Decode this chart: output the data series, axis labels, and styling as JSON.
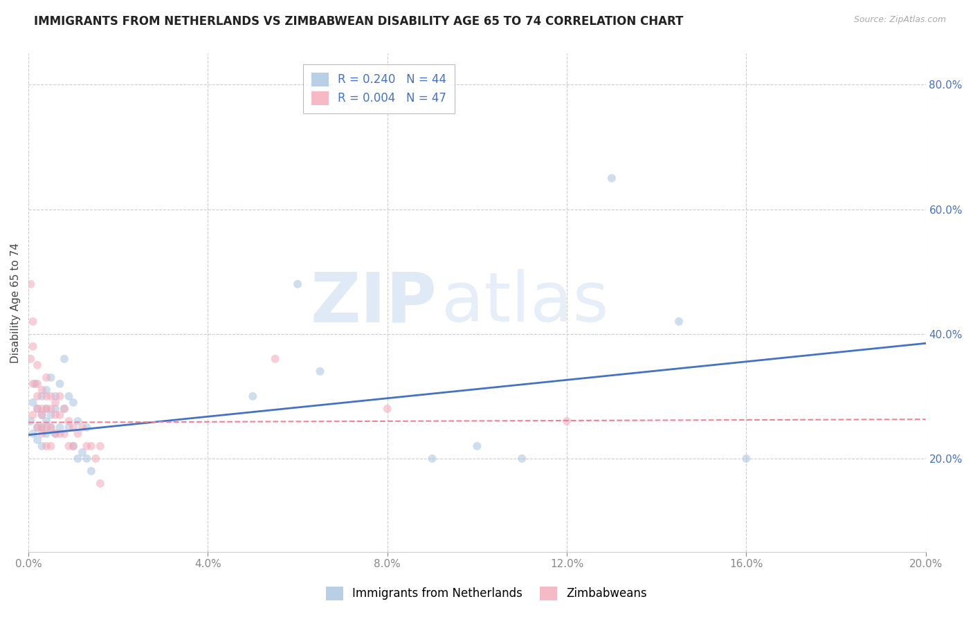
{
  "title": "IMMIGRANTS FROM NETHERLANDS VS ZIMBABWEAN DISABILITY AGE 65 TO 74 CORRELATION CHART",
  "source": "Source: ZipAtlas.com",
  "ylabel": "Disability Age 65 to 74",
  "legend_labels": [
    "Immigrants from Netherlands",
    "Zimbabweans"
  ],
  "r_values": [
    0.24,
    0.004
  ],
  "n_values": [
    44,
    47
  ],
  "blue_color": "#a8c4e0",
  "pink_color": "#f4a8b8",
  "blue_line_color": "#4472c4",
  "pink_line_color": "#f48098",
  "watermark_zip": "ZIP",
  "watermark_atlas": "atlas",
  "xlim": [
    0.0,
    0.2
  ],
  "ylim": [
    0.05,
    0.85
  ],
  "yticks_right": [
    0.2,
    0.4,
    0.6,
    0.8
  ],
  "yticks_grid": [
    0.2,
    0.4,
    0.6,
    0.8
  ],
  "xticks": [
    0.0,
    0.04,
    0.08,
    0.12,
    0.16,
    0.2
  ],
  "blue_scatter_x": [
    0.0005,
    0.001,
    0.001,
    0.0015,
    0.002,
    0.002,
    0.002,
    0.003,
    0.003,
    0.003,
    0.003,
    0.004,
    0.004,
    0.004,
    0.004,
    0.005,
    0.005,
    0.005,
    0.006,
    0.006,
    0.006,
    0.007,
    0.007,
    0.008,
    0.008,
    0.009,
    0.009,
    0.01,
    0.01,
    0.011,
    0.011,
    0.012,
    0.013,
    0.013,
    0.014,
    0.05,
    0.06,
    0.065,
    0.09,
    0.1,
    0.11,
    0.13,
    0.145,
    0.16
  ],
  "blue_scatter_y": [
    0.26,
    0.29,
    0.24,
    0.32,
    0.28,
    0.25,
    0.23,
    0.3,
    0.27,
    0.25,
    0.22,
    0.31,
    0.28,
    0.26,
    0.24,
    0.33,
    0.27,
    0.25,
    0.3,
    0.28,
    0.24,
    0.32,
    0.25,
    0.36,
    0.28,
    0.3,
    0.25,
    0.29,
    0.22,
    0.26,
    0.2,
    0.21,
    0.25,
    0.2,
    0.18,
    0.3,
    0.48,
    0.34,
    0.2,
    0.22,
    0.2,
    0.65,
    0.42,
    0.2
  ],
  "pink_scatter_x": [
    0.0005,
    0.0005,
    0.001,
    0.001,
    0.001,
    0.001,
    0.002,
    0.002,
    0.002,
    0.002,
    0.002,
    0.003,
    0.003,
    0.003,
    0.003,
    0.003,
    0.004,
    0.004,
    0.004,
    0.004,
    0.004,
    0.005,
    0.005,
    0.005,
    0.005,
    0.006,
    0.006,
    0.006,
    0.007,
    0.007,
    0.007,
    0.008,
    0.008,
    0.009,
    0.009,
    0.01,
    0.01,
    0.011,
    0.012,
    0.013,
    0.014,
    0.015,
    0.016,
    0.016,
    0.055,
    0.08,
    0.12
  ],
  "pink_scatter_y": [
    0.48,
    0.36,
    0.42,
    0.38,
    0.32,
    0.27,
    0.35,
    0.32,
    0.3,
    0.28,
    0.25,
    0.31,
    0.28,
    0.27,
    0.25,
    0.24,
    0.33,
    0.3,
    0.28,
    0.25,
    0.22,
    0.3,
    0.28,
    0.25,
    0.22,
    0.29,
    0.27,
    0.24,
    0.3,
    0.27,
    0.24,
    0.28,
    0.24,
    0.26,
    0.22,
    0.25,
    0.22,
    0.24,
    0.25,
    0.22,
    0.22,
    0.2,
    0.22,
    0.16,
    0.36,
    0.28,
    0.26
  ],
  "blue_trend_x": [
    0.0,
    0.2
  ],
  "blue_trend_y": [
    0.238,
    0.385
  ],
  "pink_trend_x": [
    0.0,
    0.2
  ],
  "pink_trend_y": [
    0.258,
    0.263
  ],
  "grid_color": "#cccccc",
  "background_color": "#ffffff",
  "title_fontsize": 12,
  "axis_label_fontsize": 11,
  "tick_fontsize": 11,
  "legend_fontsize": 12,
  "marker_size": 75,
  "marker_alpha": 0.55
}
